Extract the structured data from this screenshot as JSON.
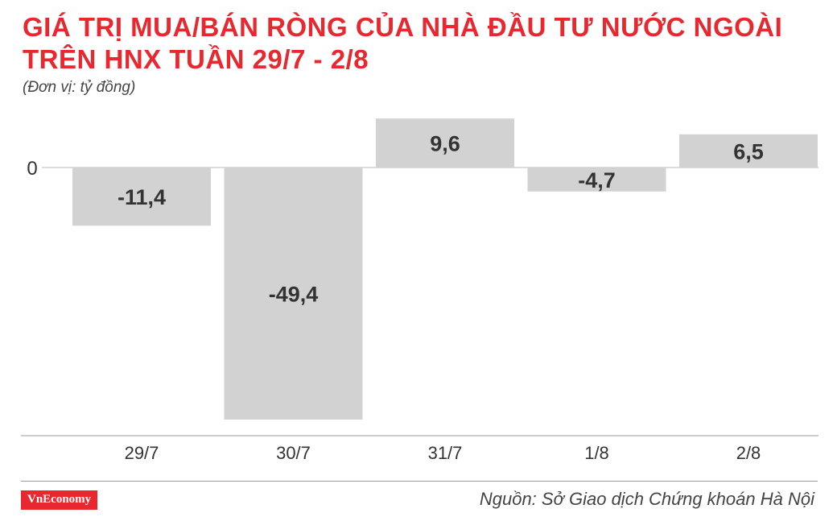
{
  "header": {
    "title_line1": "GIÁ TRỊ MUA/BÁN RÒNG CỦA NHÀ ĐẦU TƯ NƯỚC NGOÀI",
    "title_line2": "TRÊN HNX TUẦN 29/7 - 2/8",
    "unit": "(Đơn vị: tỷ đồng)"
  },
  "footer": {
    "logo": "VnEconomy",
    "source": "Nguồn: Sở Giao dịch Chứng khoán Hà Nội"
  },
  "colors": {
    "title": "#e8282e",
    "bar": "#d2d2d2",
    "label": "#333333"
  },
  "chart_data": {
    "type": "bar",
    "categories": [
      "29/7",
      "30/7",
      "31/7",
      "1/8",
      "2/8"
    ],
    "values": [
      -11.4,
      -49.4,
      9.6,
      -4.7,
      6.5
    ],
    "value_labels": [
      "-11,4",
      "-49,4",
      "9,6",
      "-4,7",
      "6,5"
    ],
    "y_tick_labels": [
      "0"
    ],
    "ylim": [
      -49.4,
      9.6
    ],
    "grid": false,
    "legend": "none"
  }
}
